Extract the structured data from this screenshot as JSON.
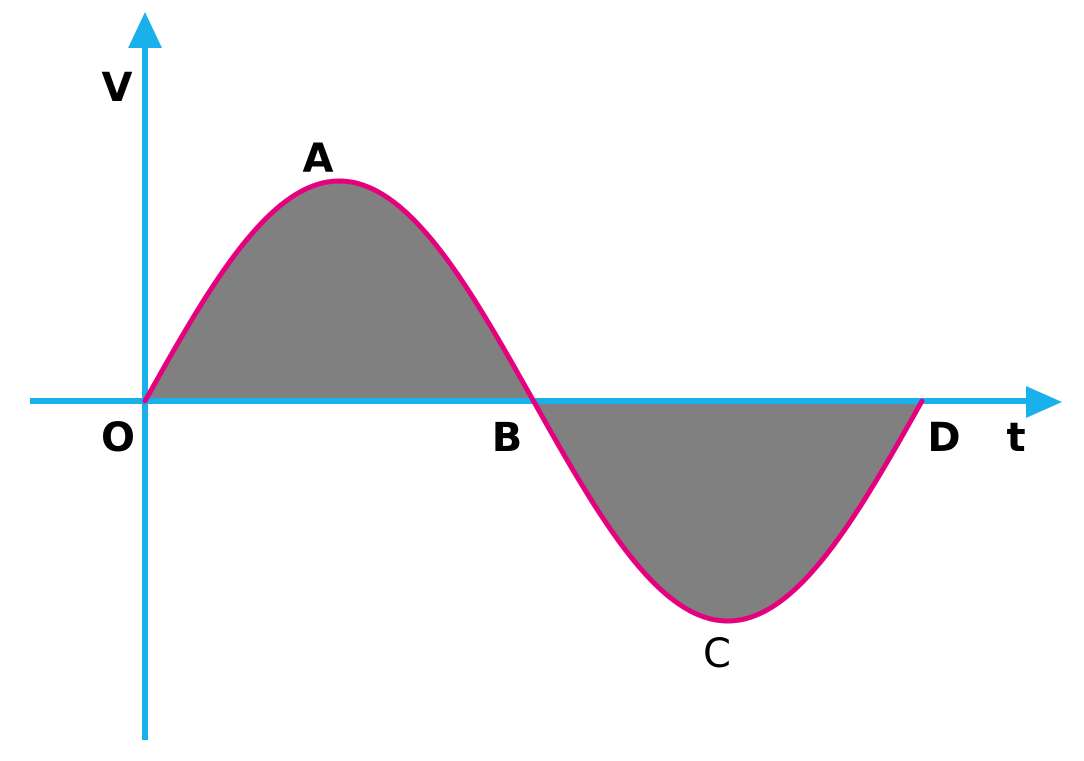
{
  "diagram": {
    "axes": {
      "y_label": "V",
      "x_label": "t"
    },
    "points": {
      "origin": "O",
      "peak": "A",
      "zero_crossing": "B",
      "trough": "C",
      "end": "D"
    },
    "colors": {
      "axis": "#1ab0ec",
      "curve": "#e5007e",
      "fill": "#808080",
      "text": "#000000"
    }
  }
}
